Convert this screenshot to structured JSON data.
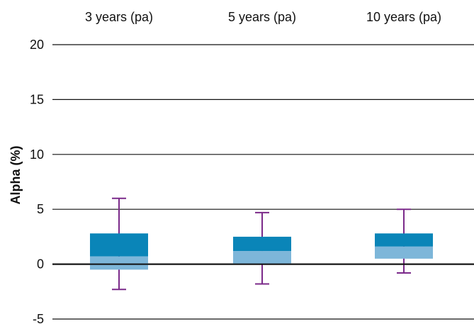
{
  "chart_data": {
    "type": "box",
    "title": "",
    "xlabel": "",
    "ylabel": "Alpha (%)",
    "ylim": [
      -5,
      20
    ],
    "yticks": [
      20,
      15,
      10,
      5,
      0,
      -5
    ],
    "ytick_labels": [
      "20",
      "15",
      "10",
      "5",
      "0",
      "-5"
    ],
    "grid": "horizontal",
    "categories": [
      "3 years (pa)",
      "5 years (pa)",
      "10 years (pa)"
    ],
    "boxes": [
      {
        "category": "3 years (pa)",
        "min": -2.3,
        "q1": -0.5,
        "median": 0.7,
        "q3": 2.8,
        "max": 6.0
      },
      {
        "category": "5 years (pa)",
        "min": -1.8,
        "q1": 0.0,
        "median": 1.2,
        "q3": 2.5,
        "max": 4.7
      },
      {
        "category": "10 years (pa)",
        "min": -0.8,
        "q1": 0.5,
        "median": 1.6,
        "q3": 2.8,
        "max": 5.0
      }
    ],
    "colors": {
      "upper_box": "#0a85b8",
      "lower_box": "#7db6d9",
      "whisker": "#7b2a8a",
      "gridline": "#111111"
    }
  }
}
